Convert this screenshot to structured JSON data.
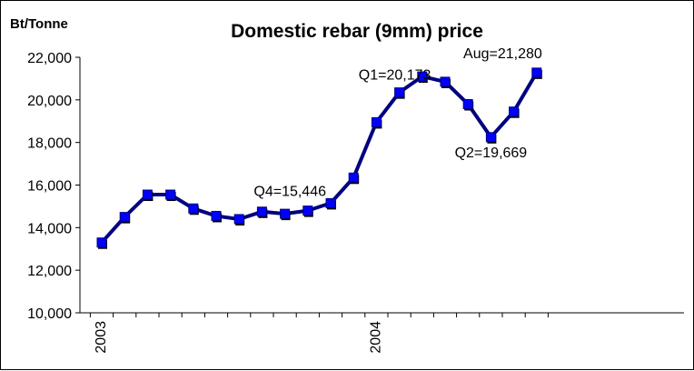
{
  "chart_data": {
    "type": "line",
    "title": "Domestic rebar (9mm) price",
    "ylabel": "Bt/Tonne",
    "xlabel": "",
    "ylim": [
      10000,
      22000
    ],
    "y_ticks": [
      "10,000",
      "12,000",
      "14,000",
      "16,000",
      "18,000",
      "20,000",
      "22,000"
    ],
    "x_tick_labels": [
      {
        "label": "2003",
        "index": 0
      },
      {
        "label": "2004",
        "index": 12
      }
    ],
    "grid": false,
    "legend": "none",
    "colors": {
      "line": "#000080",
      "marker": "#0000ff",
      "marker_shadow": "#000000"
    },
    "series": [
      {
        "values": [
          13300,
          14500,
          15550,
          15550,
          14900,
          14550,
          14400,
          14750,
          14650,
          14800,
          15150,
          16350,
          18950,
          20350,
          21100,
          20850,
          19800,
          18250,
          19450,
          21280
        ]
      }
    ],
    "annotations": [
      {
        "text": "Q4=15,446",
        "index": 10
      },
      {
        "text": "Q1=20,173",
        "index": 13
      },
      {
        "text": "Q2=19,669",
        "index": 17
      },
      {
        "text": "Aug=21,280",
        "index": 19
      }
    ]
  }
}
